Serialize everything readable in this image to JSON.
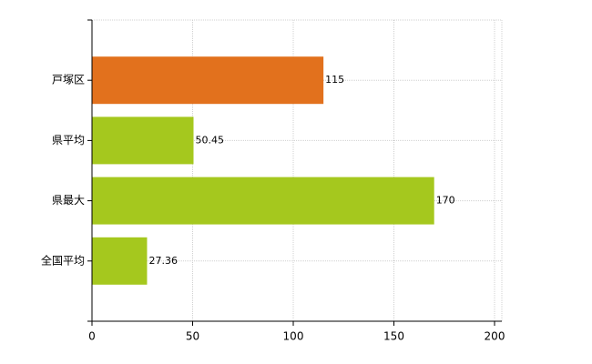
{
  "chart_data": {
    "type": "bar",
    "orientation": "horizontal",
    "categories": [
      "戸塚区",
      "県平均",
      "県最大",
      "全国平均"
    ],
    "values": [
      115,
      50.45,
      170,
      27.36
    ],
    "colors": [
      "#e2711d",
      "#a5c81e",
      "#a5c81e",
      "#a5c81e"
    ],
    "xlim": [
      0,
      200
    ],
    "xticks": [
      0,
      50,
      100,
      150,
      200
    ],
    "grid": true
  }
}
